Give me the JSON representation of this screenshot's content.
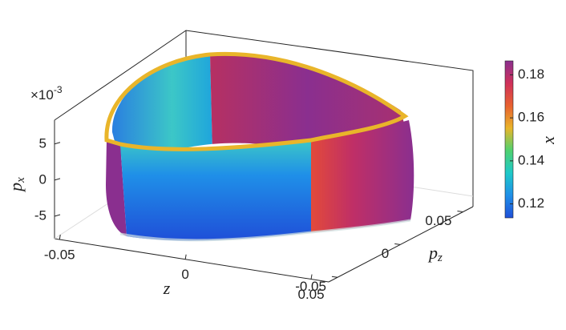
{
  "chart_data": {
    "type": "surface3d",
    "xlabel": "z",
    "ylabel": [
      "p",
      "z"
    ],
    "zlabel": [
      "p",
      "x"
    ],
    "zexponent": [
      "×10",
      "-3"
    ],
    "xlim": [
      -0.052,
      0.057
    ],
    "xticks": [
      -0.05,
      0,
      0.05
    ],
    "ylim": [
      -0.057,
      0.058
    ],
    "yticks": [
      -0.05,
      0,
      0.05
    ],
    "zlim": [
      -8.1,
      8.3
    ],
    "zticks": [
      -5,
      0,
      5
    ],
    "colorbar": {
      "label": "x",
      "clim": [
        0.1135,
        0.1865
      ],
      "ticks": [
        0.12,
        0.14,
        0.16,
        0.18
      ],
      "colormap": [
        "#1f4fd8",
        "#1f8fe8",
        "#1ec9c9",
        "#4fd16f",
        "#e9b52a",
        "#e8612f",
        "#d0305a",
        "#8a2f8f"
      ]
    }
  }
}
